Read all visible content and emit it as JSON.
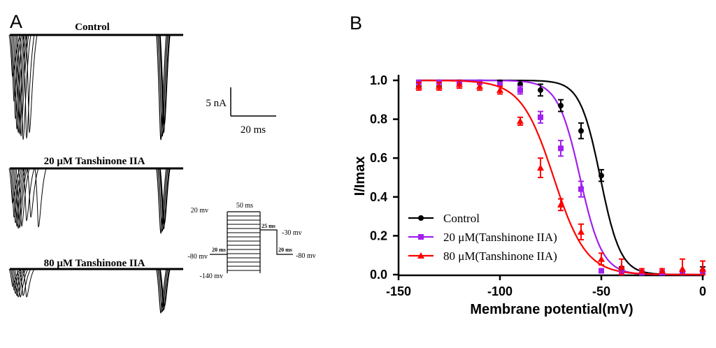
{
  "panel_a": {
    "label": "A",
    "traces": [
      {
        "title": "Control",
        "second_peak_scale": 1.0
      },
      {
        "title": "20 μM Tanshinone IIA",
        "second_peak_scale": 0.62
      },
      {
        "title": "80 μM Tanshinone IIA",
        "second_peak_scale": 0.42
      }
    ],
    "scale_bar": {
      "current": "5 nA",
      "time": "20 ms"
    },
    "protocol": {
      "hold_label": "-80 mv",
      "top_label": "20 mv",
      "bottom_label": "-140 mv",
      "step_label": "-30 mv",
      "end_label": "-80 mv",
      "dur_pre": "20 ms",
      "dur_cond": "50 ms",
      "dur_gap": "25 ms",
      "dur_test": "20 ms"
    }
  },
  "panel_b_label": "B",
  "chart_data": {
    "type": "scatter",
    "xlabel": "Membrane potential(mV)",
    "ylabel": "I/Imax",
    "xlim": [
      -150,
      0
    ],
    "ylim": [
      0.0,
      1.0
    ],
    "xticks": [
      -150,
      -100,
      -50,
      0
    ],
    "yticks": [
      0.0,
      0.2,
      0.4,
      0.6,
      0.8,
      1.0
    ],
    "legend_position": "bottom-left",
    "series": [
      {
        "name": "Control",
        "color": "#000000",
        "marker": "circle",
        "v_half": -50.5,
        "k": 5.0,
        "x": [
          -140,
          -130,
          -120,
          -110,
          -100,
          -90,
          -80,
          -70,
          -60,
          -50,
          -40,
          -30,
          -20,
          -10,
          0
        ],
        "y": [
          0.99,
          0.99,
          0.99,
          0.99,
          0.99,
          0.98,
          0.95,
          0.87,
          0.74,
          0.51,
          0.02,
          0.01,
          0.01,
          0.01,
          0.02
        ],
        "err": [
          0.02,
          0.02,
          0.01,
          0.01,
          0.01,
          0.02,
          0.03,
          0.03,
          0.04,
          0.03,
          0.02,
          0.01,
          0.01,
          0.01,
          0.02
        ]
      },
      {
        "name": "20 μM(Tanshinone IIA)",
        "color": "#a020f0",
        "marker": "square",
        "v_half": -60.5,
        "k": 5.5,
        "x": [
          -140,
          -130,
          -120,
          -110,
          -100,
          -90,
          -80,
          -70,
          -60,
          -50,
          -40,
          -30,
          -20,
          -10,
          0
        ],
        "y": [
          0.99,
          0.99,
          0.99,
          0.99,
          0.98,
          0.95,
          0.81,
          0.65,
          0.44,
          0.02,
          0.01,
          0.01,
          0.01,
          0.01,
          0.01
        ],
        "err": [
          0.01,
          0.01,
          0.01,
          0.01,
          0.01,
          0.02,
          0.03,
          0.04,
          0.04,
          0.01,
          0.01,
          0.01,
          0.01,
          0.01,
          0.01
        ]
      },
      {
        "name": "80 μM(Tanshinone IIA)",
        "color": "#ff0000",
        "marker": "triangle",
        "v_half": -73.5,
        "k": 8.0,
        "x": [
          -140,
          -130,
          -120,
          -110,
          -100,
          -90,
          -80,
          -70,
          -60,
          -50,
          -40,
          -30,
          -20,
          -10,
          0
        ],
        "y": [
          0.97,
          0.97,
          0.98,
          0.97,
          0.95,
          0.79,
          0.55,
          0.36,
          0.22,
          0.08,
          0.04,
          0.02,
          0.02,
          0.03,
          0.03
        ],
        "err": [
          0.02,
          0.02,
          0.02,
          0.02,
          0.02,
          0.02,
          0.05,
          0.03,
          0.04,
          0.03,
          0.04,
          0.01,
          0.01,
          0.05,
          0.04
        ]
      }
    ]
  }
}
